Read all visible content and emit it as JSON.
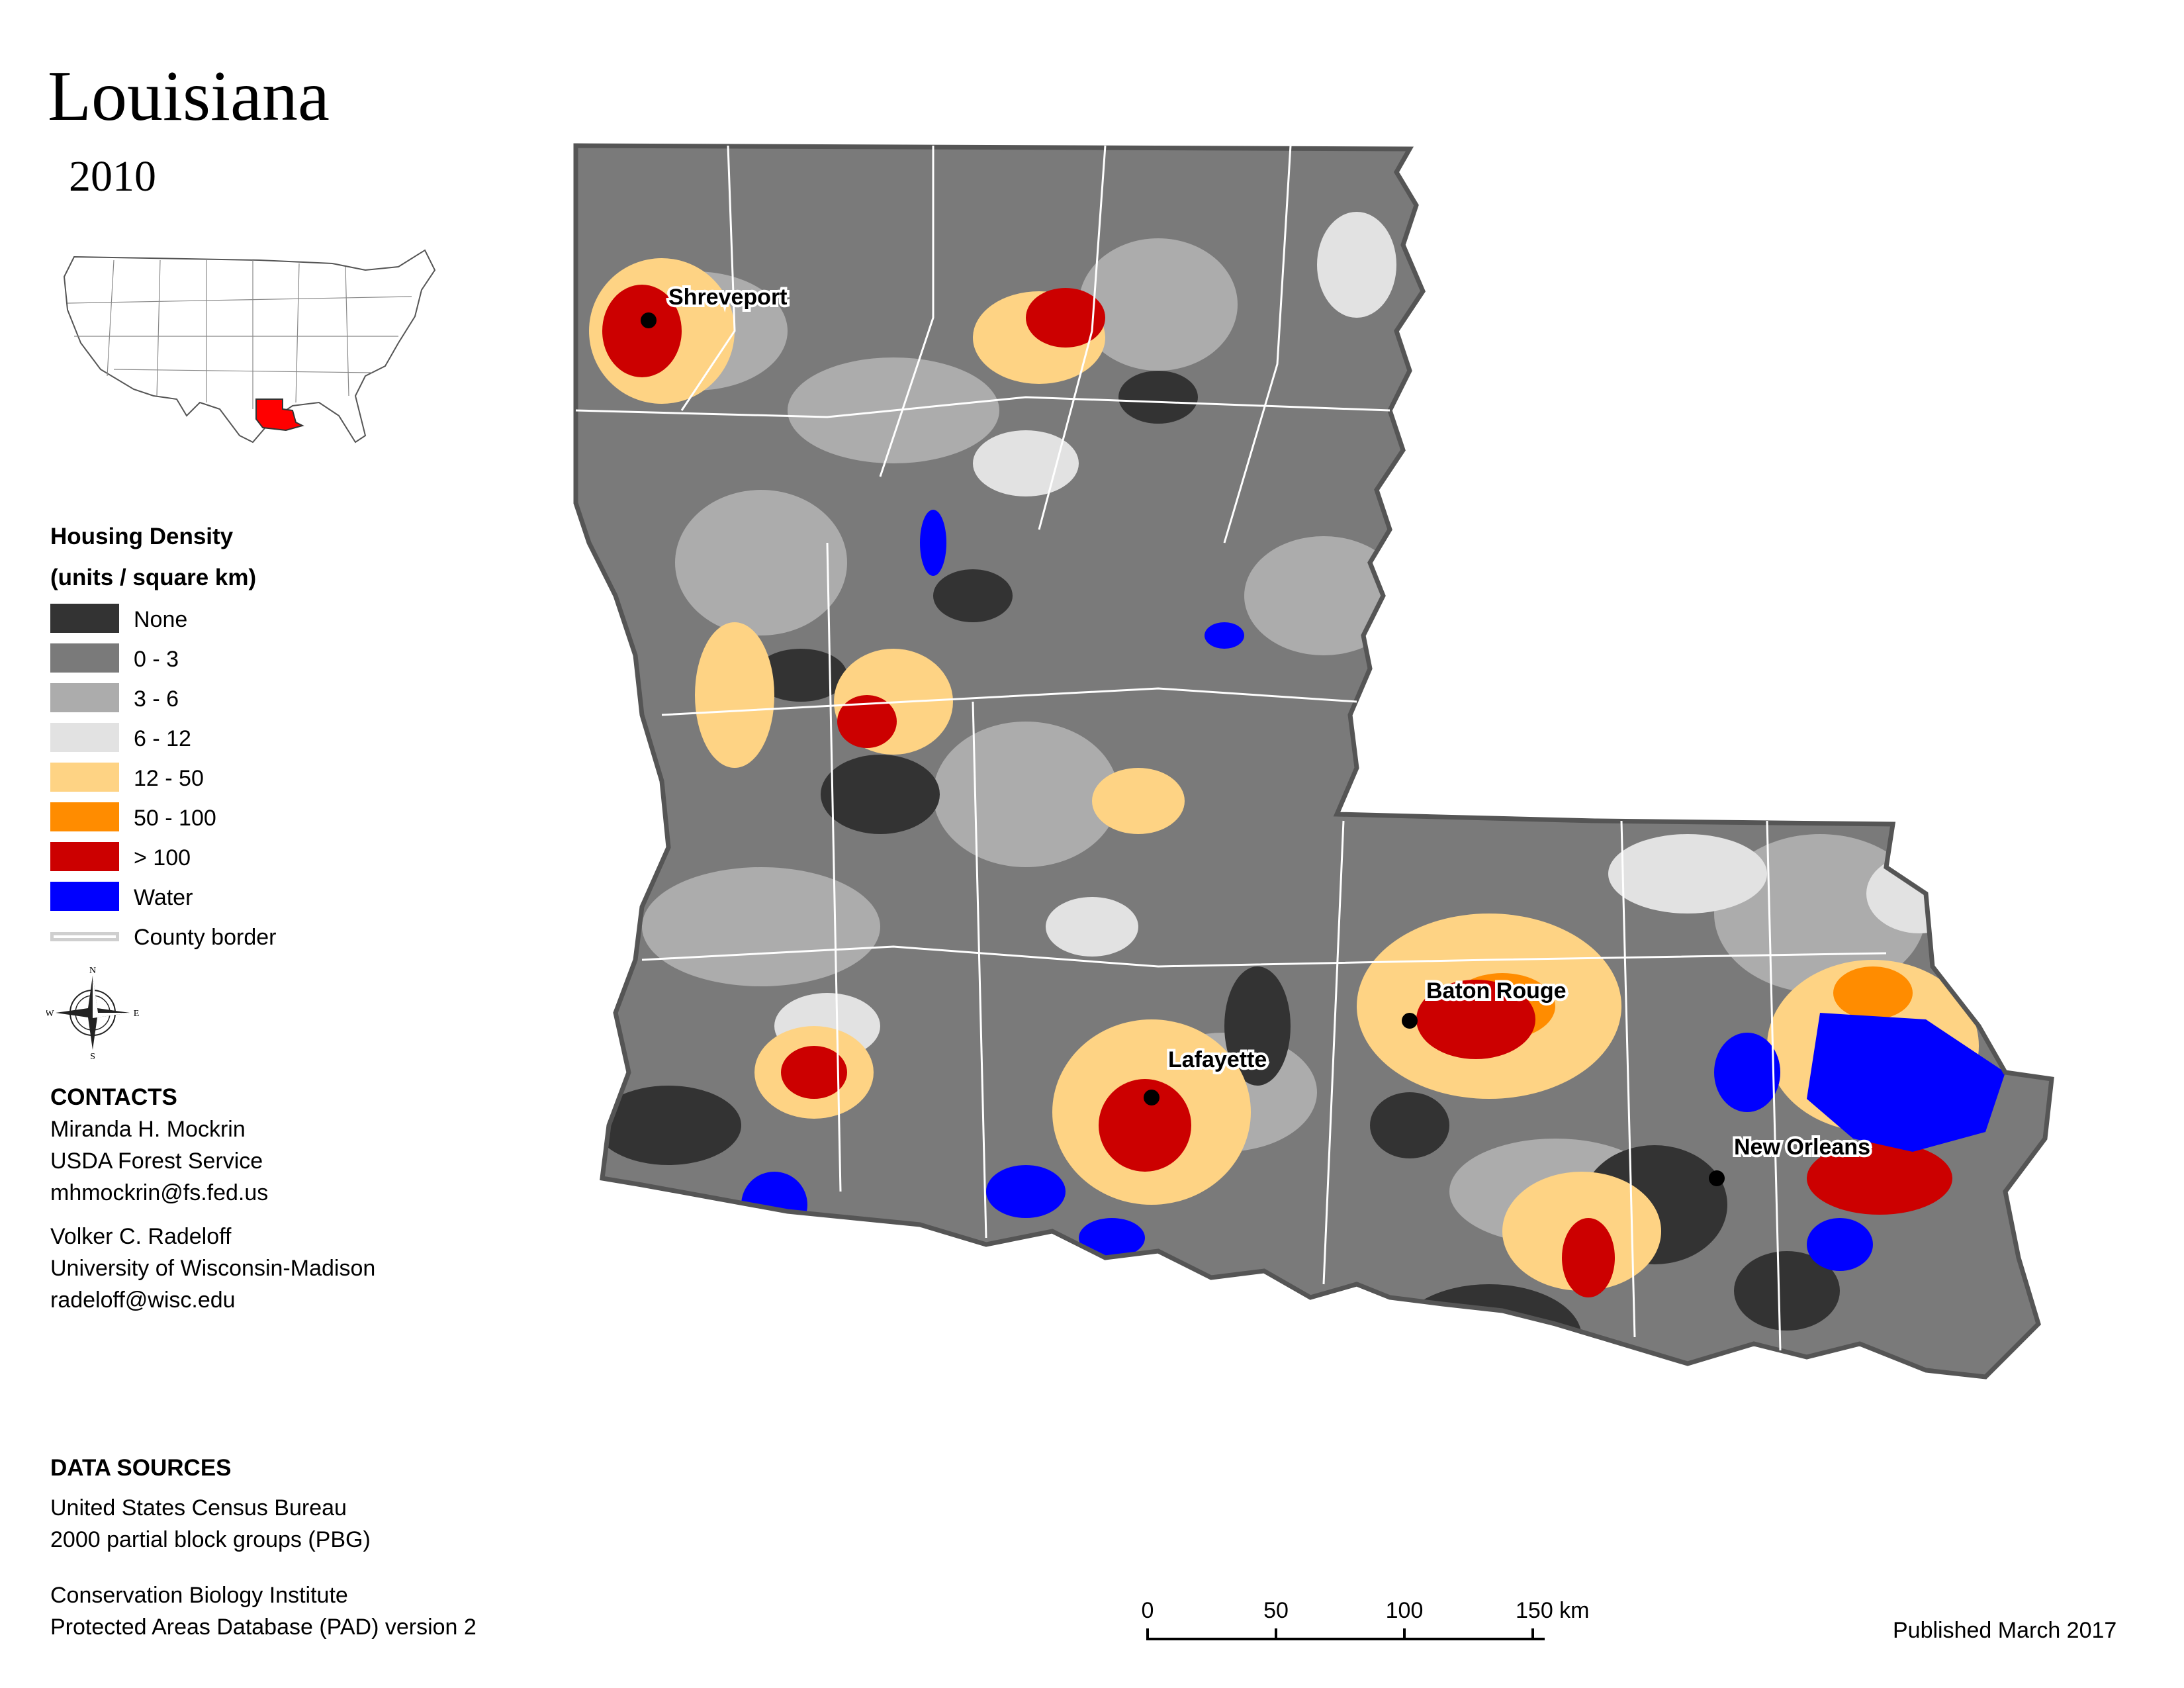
{
  "title": "Louisiana",
  "year": "2010",
  "legend": {
    "title_line1": "Housing Density",
    "title_line2": "(units / square km)",
    "items": [
      {
        "label": "None",
        "color": "#333333"
      },
      {
        "label": "0 - 3",
        "color": "#7a7a7a"
      },
      {
        "label": "3 - 6",
        "color": "#acacac"
      },
      {
        "label": "6 - 12",
        "color": "#e2e2e2"
      },
      {
        "label": "12 - 50",
        "color": "#fed384"
      },
      {
        "label": "50 - 100",
        "color": "#ff8c00"
      },
      {
        "label": "> 100",
        "color": "#cc0000"
      },
      {
        "label": "Water",
        "color": "#0000ff"
      }
    ],
    "border_label": "County border"
  },
  "compass": {
    "n": "N",
    "s": "S",
    "e": "E",
    "w": "W"
  },
  "contacts": {
    "heading": "CONTACTS",
    "person1": {
      "name": "Miranda H. Mockrin",
      "org": "USDA Forest Service",
      "email": "mhmockrin@fs.fed.us"
    },
    "person2": {
      "name": "Volker C. Radeloff",
      "org": "University of Wisconsin-Madison",
      "email": "radeloff@wisc.edu"
    }
  },
  "data_sources": {
    "heading": "DATA SOURCES",
    "line1": "United States Census Bureau",
    "line2": "2000 partial block groups (PBG)",
    "line3": "Conservation Biology Institute",
    "line4": "Protected Areas Database (PAD) version 2"
  },
  "cities": [
    {
      "name": "Shreveport"
    },
    {
      "name": "Baton Rouge"
    },
    {
      "name": "Lafayette"
    },
    {
      "name": "New Orleans"
    }
  ],
  "scale_bar": {
    "ticks": [
      "0",
      "50",
      "100",
      "150 km"
    ]
  },
  "published": "Published March 2017"
}
